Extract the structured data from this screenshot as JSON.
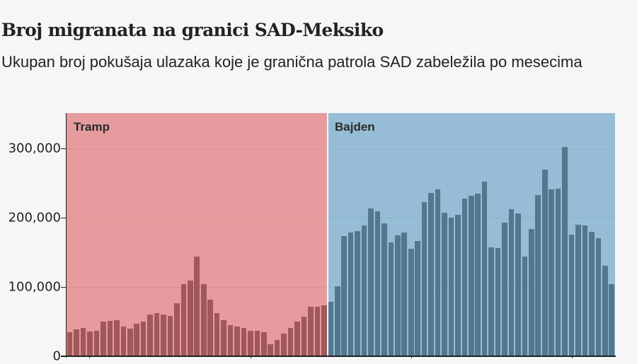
{
  "header": {
    "title": "Broj migranata na granici SAD-Meksiko",
    "subtitle": "Ukupan broj pokušaja ulazaka koje je granična patrola SAD zabeležila po mesecima"
  },
  "colors": {
    "background": "#f6f6f6",
    "trump_band": "#e69c9e",
    "trump_bar": "#a0585a",
    "biden_band": "#96bdd5",
    "biden_bar": "#52778f",
    "text": "#222222"
  },
  "chart_data": {
    "type": "bar",
    "title": "Broj migranata na granici SAD-Meksiko",
    "subtitle": "Ukupan broj pokušaja ulazaka koje je granična patrola SAD zabeležila po mesecima",
    "xlabel": "",
    "ylabel": "",
    "ylim": [
      0,
      350000
    ],
    "yticks": [
      0,
      100000,
      200000,
      300000
    ],
    "ytick_labels": [
      "0",
      "100,000",
      "200,000",
      "300,000"
    ],
    "grid": true,
    "legend": "none",
    "annotations": [
      "Tramp",
      "Bajden"
    ],
    "series": [
      {
        "name": "Tramp",
        "values": [
          34700,
          38800,
          40500,
          35700,
          36700,
          50000,
          51000,
          51700,
          42900,
          39800,
          46900,
          50300,
          60500,
          62200,
          60500,
          58200,
          76500,
          103700,
          109000,
          144000,
          104000,
          81600,
          62200,
          52400,
          44900,
          42500,
          40500,
          36700,
          36700,
          34400,
          17300,
          23100,
          32600,
          40800,
          50000,
          57500,
          71800,
          71800,
          73800
        ]
      },
      {
        "name": "Bajden",
        "values": [
          78600,
          101000,
          173500,
          178600,
          180300,
          188800,
          213600,
          209500,
          191800,
          164600,
          174500,
          178900,
          154800,
          166000,
          222400,
          235400,
          240800,
          207400,
          200000,
          204000,
          227200,
          231300,
          234700,
          252000,
          157000,
          156000,
          192900,
          211900,
          206000,
          144000,
          183300,
          232700,
          269400,
          240800,
          241800,
          301700,
          175900,
          189500,
          188800,
          179600,
          170400,
          130300,
          103800
        ]
      }
    ]
  },
  "periods": {
    "trump_label": "Tramp",
    "biden_label": "Bajden"
  }
}
